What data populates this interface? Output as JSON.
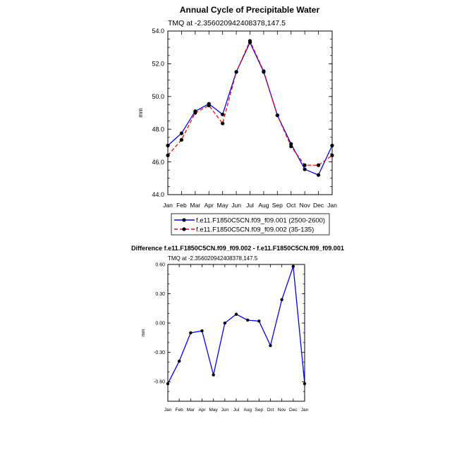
{
  "chart_data": [
    {
      "type": "line",
      "title": "Annual Cycle of Precipitable Water",
      "subtitle": "TMQ at -2.356020942408378,147.5",
      "xlabel": "",
      "ylabel": "mm",
      "categories": [
        "Jan",
        "Feb",
        "Mar",
        "Apr",
        "May",
        "Jun",
        "Jul",
        "Aug",
        "Sep",
        "Oct",
        "Nov",
        "Dec",
        "Jan"
      ],
      "ylim": [
        44.0,
        54.0
      ],
      "yticks": [
        "44.0",
        "46.0",
        "48.0",
        "50.0",
        "52.0",
        "54.0"
      ],
      "legend_position": "bottom-center",
      "series": [
        {
          "name": "f.e11.F1850C5CN.f09_f09.001 (2500-2600)",
          "color": "#0000ff",
          "dash": "solid",
          "values": [
            47.0,
            47.75,
            49.1,
            49.55,
            48.9,
            51.5,
            53.3,
            51.5,
            48.85,
            47.1,
            45.55,
            45.2,
            47.0
          ]
        },
        {
          "name": "f.e11.F1850C5CN.f09_f09.002 (35-135)",
          "color": "#ff0000",
          "dash": "dashed",
          "values": [
            46.4,
            47.35,
            49.0,
            49.45,
            48.35,
            51.5,
            53.4,
            51.55,
            48.85,
            46.95,
            45.8,
            45.8,
            46.4
          ]
        }
      ]
    },
    {
      "type": "line",
      "title": "Difference f.e11.F1850C5CN.f09_f09.002 - f.e11.F1850C5CN.f09_f09.001",
      "subtitle": "TMQ at -2.356020942408378,147.5",
      "xlabel": "",
      "ylabel": "mm",
      "categories": [
        "Jan",
        "Feb",
        "Mar",
        "Apr",
        "May",
        "Jun",
        "Jul",
        "Aug",
        "Sep",
        "Oct",
        "Nov",
        "Dec",
        "Jan"
      ],
      "ylim": [
        -0.8,
        0.6
      ],
      "yticks": [
        "-0.60",
        "-0.30",
        "0.00",
        "0.30",
        "0.60"
      ],
      "series": [
        {
          "color": "#0000ff",
          "dash": "solid",
          "values": [
            -0.62,
            -0.39,
            -0.1,
            -0.08,
            -0.53,
            0.0,
            0.09,
            0.03,
            0.02,
            -0.23,
            0.24,
            0.58,
            -0.62
          ]
        }
      ]
    }
  ]
}
